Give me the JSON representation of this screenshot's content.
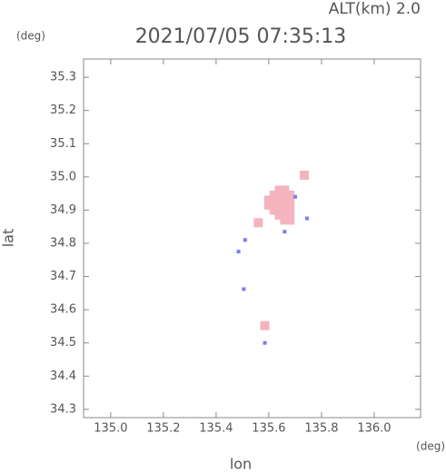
{
  "chart_data": {
    "type": "scatter",
    "title": "2021/07/05 07:35:13",
    "annotation": "ALT(km) 2.0",
    "x_label": "lon",
    "y_label": "lat",
    "x_unit": "(deg)",
    "y_unit": "(deg)",
    "xlim": [
      134.897,
      136.176
    ],
    "ylim": [
      34.275,
      35.355
    ],
    "xticks": [
      {
        "value": 135,
        "label": "135.0"
      },
      135.2,
      135.4,
      135.6,
      135.8,
      {
        "value": 136,
        "label": "136.0"
      }
    ],
    "yticks": [
      34.3,
      34.4,
      34.5,
      34.6,
      34.7,
      34.8,
      34.9,
      {
        "value": 35,
        "label": "35.0"
      },
      35.1,
      35.2,
      35.3
    ],
    "series": [
      {
        "color": "#f4b4bd",
        "x": [
          135.64,
          135.66,
          135.62,
          135.64,
          135.66,
          135.68,
          135.6,
          135.62,
          135.64,
          135.66,
          135.68,
          135.6,
          135.62,
          135.64,
          135.66,
          135.68,
          135.62,
          135.64,
          135.66,
          135.68,
          135.64,
          135.66,
          135.68,
          135.66,
          135.68,
          135.735,
          135.56,
          135.585
        ],
        "y": [
          34.96,
          34.96,
          34.945,
          34.945,
          34.945,
          34.945,
          34.93,
          34.93,
          34.93,
          34.93,
          34.93,
          34.915,
          34.915,
          34.915,
          34.915,
          34.915,
          34.9,
          34.9,
          34.9,
          34.9,
          34.885,
          34.885,
          34.885,
          34.87,
          34.87,
          35.005,
          34.862,
          34.552
        ]
      },
      {
        "color": "#7b7bf0",
        "x": [
          135.585,
          135.51,
          135.505,
          135.745,
          135.7,
          135.66,
          135.485
        ],
        "y": [
          34.5,
          34.81,
          34.662,
          34.875,
          34.94,
          34.835,
          34.775
        ]
      }
    ]
  }
}
